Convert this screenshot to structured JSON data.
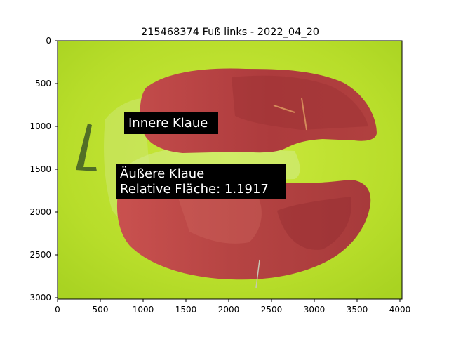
{
  "title": "215468374 Fuß links - 2022_04_20",
  "x_ticks": [
    "0",
    "500",
    "1000",
    "1500",
    "2000",
    "2500",
    "3000",
    "3500",
    "4000"
  ],
  "y_ticks": [
    "0",
    "500",
    "1000",
    "1500",
    "2000",
    "2500",
    "3000"
  ],
  "annotations": {
    "inner": {
      "line1": "Innere Klaue"
    },
    "outer": {
      "line1": "Äußere Klaue",
      "line2": "Relative Fläche: 1.1917"
    }
  },
  "image": {
    "description_icon": "photo-of-hoof-sole",
    "extent_x": [
      0,
      4032
    ],
    "extent_y": [
      3024,
      0
    ]
  },
  "colors": {
    "background": "#b8df2c",
    "claw": "#b8413f",
    "label_bg": "#000000",
    "label_text": "#ffffff"
  }
}
